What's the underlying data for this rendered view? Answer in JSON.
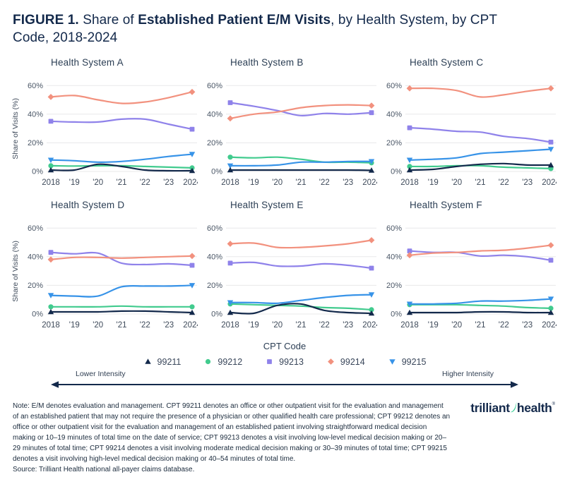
{
  "title": {
    "parts": [
      {
        "text": "FIGURE 1. ",
        "bold": true
      },
      {
        "text": "Share of ",
        "bold": false
      },
      {
        "text": "Established Patient E/M Visits",
        "bold": true
      },
      {
        "text": ", by Health System, by CPT Code, 2018-2024",
        "bold": false
      }
    ]
  },
  "chart_data": {
    "type": "line",
    "x": [
      "2018",
      "'19",
      "'20",
      "'21",
      "'22",
      "'23",
      "2024"
    ],
    "ylabel": "Share of Visits (%)",
    "ylim": [
      0,
      65
    ],
    "y_ticks": [
      "0%",
      "20%",
      "40%",
      "60%"
    ],
    "y_tick_values": [
      0,
      20,
      40,
      60
    ],
    "grid": true,
    "legend_position": "bottom",
    "draw_order": [
      "99213",
      "99214",
      "99212",
      "99215",
      "99211"
    ],
    "charts": [
      {
        "title": "Health System A",
        "series": [
          {
            "name": "99211",
            "values": [
              1,
              1,
              5,
              3.5,
              1,
              0.5,
              0.5
            ]
          },
          {
            "name": "99212",
            "values": [
              4,
              3.8,
              4,
              4,
              3.5,
              3,
              2.5
            ]
          },
          {
            "name": "99213",
            "values": [
              35,
              34.5,
              34.5,
              36.5,
              36.5,
              33,
              29.5
            ]
          },
          {
            "name": "99214",
            "values": [
              52,
              53,
              50,
              47.5,
              48.5,
              51.5,
              55.5
            ]
          },
          {
            "name": "99215",
            "values": [
              8,
              7.5,
              6.5,
              7,
              8.5,
              10.5,
              12
            ]
          }
        ]
      },
      {
        "title": "Health System B",
        "series": [
          {
            "name": "99211",
            "values": [
              1,
              1,
              1,
              1,
              1,
              1,
              0.8
            ]
          },
          {
            "name": "99212",
            "values": [
              10,
              9.5,
              10,
              8.5,
              6.5,
              6.5,
              6
            ]
          },
          {
            "name": "99213",
            "values": [
              48,
              45.5,
              42.5,
              39,
              40.5,
              40,
              41
            ]
          },
          {
            "name": "99214",
            "values": [
              37,
              40,
              41.5,
              44.5,
              46,
              46.5,
              46
            ]
          },
          {
            "name": "99215",
            "values": [
              4,
              4,
              4.5,
              6.5,
              6.5,
              7,
              7
            ]
          }
        ]
      },
      {
        "title": "Health System C",
        "series": [
          {
            "name": "99211",
            "values": [
              1,
              1.5,
              3.5,
              5,
              5.5,
              4.5,
              4.5
            ]
          },
          {
            "name": "99212",
            "values": [
              3.5,
              3.5,
              4,
              4,
              3,
              2.5,
              2
            ]
          },
          {
            "name": "99213",
            "values": [
              30.5,
              29.5,
              28,
              27.5,
              24.5,
              23,
              20.5
            ]
          },
          {
            "name": "99214",
            "values": [
              58,
              58,
              56.5,
              52,
              53.5,
              56,
              58
            ]
          },
          {
            "name": "99215",
            "values": [
              8,
              8.5,
              9.5,
              12.5,
              13.5,
              14.5,
              15.5
            ]
          }
        ]
      },
      {
        "title": "Health System D",
        "series": [
          {
            "name": "99211",
            "values": [
              1.5,
              1.5,
              1.5,
              2,
              2,
              1.5,
              1
            ]
          },
          {
            "name": "99212",
            "values": [
              5,
              5,
              5,
              5.5,
              5,
              5,
              5
            ]
          },
          {
            "name": "99213",
            "values": [
              43,
              42,
              42.5,
              35.5,
              34.5,
              35,
              34
            ]
          },
          {
            "name": "99214",
            "values": [
              38,
              39.5,
              39.5,
              39,
              39.5,
              40,
              40.5
            ]
          },
          {
            "name": "99215",
            "values": [
              13,
              12.5,
              12.5,
              19,
              19.5,
              19.5,
              20
            ]
          }
        ]
      },
      {
        "title": "Health System E",
        "series": [
          {
            "name": "99211",
            "values": [
              1,
              0.5,
              6,
              7,
              2.5,
              1,
              0.5
            ]
          },
          {
            "name": "99212",
            "values": [
              7,
              6.5,
              6,
              5.5,
              4.5,
              4,
              3
            ]
          },
          {
            "name": "99213",
            "values": [
              35.5,
              36,
              33.5,
              33.5,
              35,
              34,
              32
            ]
          },
          {
            "name": "99214",
            "values": [
              49,
              49.5,
              46.5,
              46.5,
              47.5,
              49,
              51.5
            ]
          },
          {
            "name": "99215",
            "values": [
              8,
              8,
              7.5,
              9.5,
              11.5,
              13,
              13.5
            ]
          }
        ]
      },
      {
        "title": "Health System F",
        "series": [
          {
            "name": "99211",
            "values": [
              1,
              1,
              1,
              1.5,
              1.5,
              1,
              1
            ]
          },
          {
            "name": "99212",
            "values": [
              6.5,
              6.5,
              6.5,
              6,
              5.5,
              4.5,
              4
            ]
          },
          {
            "name": "99213",
            "values": [
              44,
              43,
              43,
              40.5,
              41,
              40,
              37.5
            ]
          },
          {
            "name": "99214",
            "values": [
              41,
              42.5,
              43,
              44,
              44.5,
              46,
              48
            ]
          },
          {
            "name": "99215",
            "values": [
              7,
              7,
              7.5,
              9,
              9,
              9.5,
              10.5
            ]
          }
        ]
      }
    ]
  },
  "legend": {
    "title": "CPT Code",
    "items": [
      {
        "code": "99211",
        "color": "#13294B",
        "marker": "triangle-up"
      },
      {
        "code": "99212",
        "color": "#41CB8E",
        "marker": "circle"
      },
      {
        "code": "99213",
        "color": "#8F82EA",
        "marker": "square"
      },
      {
        "code": "99214",
        "color": "#F2917E",
        "marker": "diamond"
      },
      {
        "code": "99215",
        "color": "#3793E8",
        "marker": "triangle-down"
      }
    ],
    "lower_label": "Lower Intensity",
    "higher_label": "Higher Intensity",
    "arrow_color": "#13294B"
  },
  "footer": {
    "note": "Note: E/M denotes evaluation and management. CPT 99211 denotes an office or other outpatient visit for the evaluation and management of an established patient that may not require the presence of a physician or other qualified health care professional; CPT 99212 denotes an office or other outpatient visit for the evaluation and management of an established patient involving straightforward medical decision making or 10–19 minutes of total time on the date of service; CPT 99213 denotes a visit involving low-level medical decision making or 20–29 minutes of total time; CPT 99214 denotes a visit involving moderate medical decision making or 30–39 minutes of total time; CPT 99215 denotes a visit involving high-level medical decision making or 40–54 minutes of total time.",
    "source": "Source: Trilliant Health national all-payer claims database.",
    "logo": {
      "word1": "trilliant",
      "word2": "health",
      "mark": "®",
      "swoosh_color": "#2FCD90"
    }
  },
  "colors": {
    "title_navy": "#13294B",
    "grid": "#E8E8EA",
    "tick_text": "#4A5666",
    "subplot_title": "#2B3E54"
  }
}
